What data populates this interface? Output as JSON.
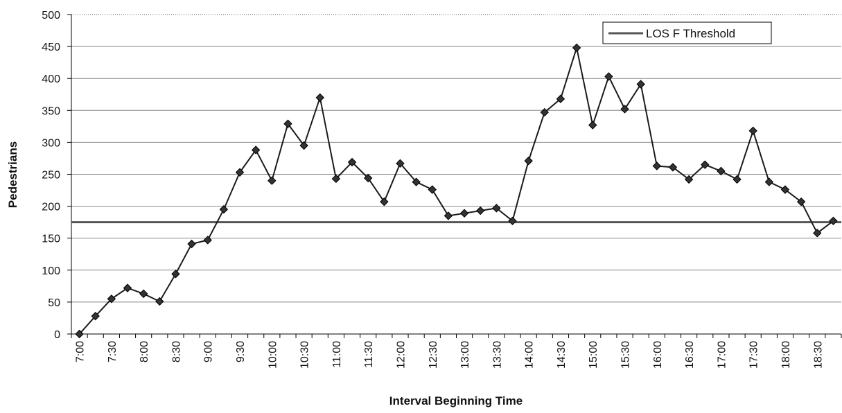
{
  "chart_data": {
    "type": "line",
    "y_label": "Pedestrians",
    "x_label": "Interval Beginning Time",
    "categories": [
      "7:00",
      null,
      "7:30",
      null,
      "8:00",
      null,
      "8:30",
      null,
      "9:00",
      null,
      "9:30",
      null,
      "10:00",
      null,
      "10:30",
      null,
      "11:00",
      null,
      "11:30",
      null,
      "12:00",
      null,
      "12:30",
      null,
      "13:00",
      null,
      "13:30",
      null,
      "14:00",
      null,
      "14:30",
      null,
      "15:00",
      null,
      "15:30",
      null,
      "16:00",
      null,
      "16:30",
      null,
      "17:00",
      null,
      "17:30",
      null,
      "18:00",
      null,
      "18:30",
      null
    ],
    "values": [
      0,
      28,
      55,
      72,
      63,
      51,
      94,
      141,
      147,
      195,
      253,
      288,
      240,
      329,
      295,
      370,
      243,
      269,
      244,
      207,
      267,
      238,
      226,
      185,
      189,
      193,
      197,
      177,
      271,
      347,
      368,
      448,
      327,
      403,
      352,
      391,
      263,
      261,
      242,
      265,
      255,
      242,
      318,
      238,
      226,
      207,
      158,
      177
    ],
    "color": "#1a1a1a",
    "threshold": {
      "name": "LOS F Threshold",
      "value": 175,
      "color": "#555555"
    },
    "ylim": [
      0,
      500
    ],
    "yticks": [
      0,
      50,
      100,
      150,
      200,
      250,
      300,
      350,
      400,
      450,
      500
    ],
    "grid": true,
    "legend": "top-right"
  }
}
